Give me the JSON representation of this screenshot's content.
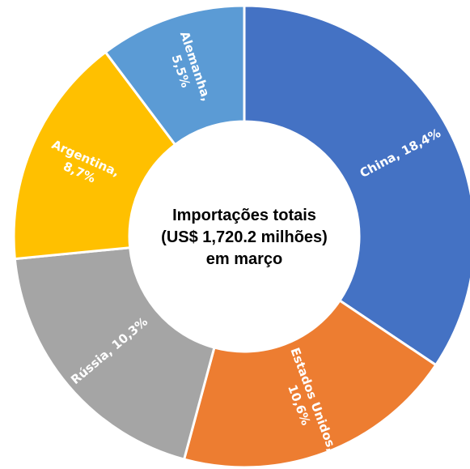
{
  "chart_data": {
    "type": "donut",
    "title": [
      "Importações totais",
      "(US$ 1,720.2 milhões)",
      "em março"
    ],
    "values": [
      18.4,
      10.6,
      10.3,
      8.7,
      5.5
    ],
    "value_labels": [
      [
        "China, 18,4%"
      ],
      [
        "Estados Unidos,",
        "10,6%"
      ],
      [
        "Rússia, 10,3%"
      ],
      [
        "Argentina,",
        "8,7%"
      ],
      [
        "Alemanha,",
        "5,5%"
      ]
    ],
    "colors": [
      "#4472c4",
      "#ed7d31",
      "#a5a5a5",
      "#ffc000",
      "#5b9bd5"
    ]
  }
}
